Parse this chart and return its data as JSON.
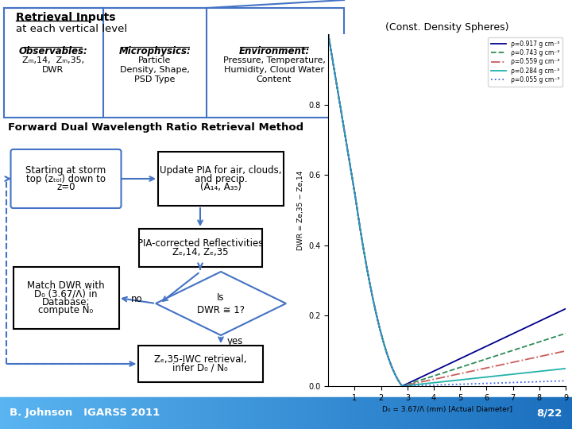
{
  "title_box": {
    "title1": "Retrieval Inputs",
    "title2": "at each vertical level",
    "box1_header": "Observables:",
    "box1_content": "Zm,14,  Zm,35,\nDWR",
    "box2_header": "Microphysics:",
    "box2_content": "Particle\nDensity, Shape,\nPSD Type",
    "box3_header": "Environment:",
    "box3_content": "Pressure, Temperature,\nHumidity, Cloud Water\nContent"
  },
  "flowchart_title": "Forward Dual Wavelength Ratio Retrieval Method",
  "plot_title": "(Const. Density Spheres)",
  "plot_xlabel": "D₀ = 3.67/Λ (mm) [Actual Diameter]",
  "plot_ylabel": "DWR = Ze,35 − Ze,14",
  "plot_xlim": [
    0,
    9
  ],
  "plot_ylim": [
    0,
    1.0
  ],
  "legend_entries": [
    "ρ=0.917 g cm⁻³",
    "ρ=0.743 g cm⁻³",
    "ρ=0.559 g cm⁻³",
    "ρ=0.284 g cm⁻³",
    "ρ=0.055 g cm⁻³"
  ],
  "line_colors": [
    "#00008B",
    "#2E8B57",
    "#CD5C5C",
    "#20B2AA",
    "#4169E1"
  ],
  "line_styles": [
    "-",
    "--",
    "-.",
    "-",
    ":"
  ],
  "final_vals": [
    0.22,
    0.15,
    0.1,
    0.05,
    0.015
  ],
  "footer_text_left": "B. Johnson   IGARSS 2011",
  "footer_text_right": "8/22",
  "bg_color": "#FFFFFF",
  "box_color": "#4472C4",
  "footer_color_left": "#5ab4f0",
  "footer_color_right": "#1a6ebd"
}
